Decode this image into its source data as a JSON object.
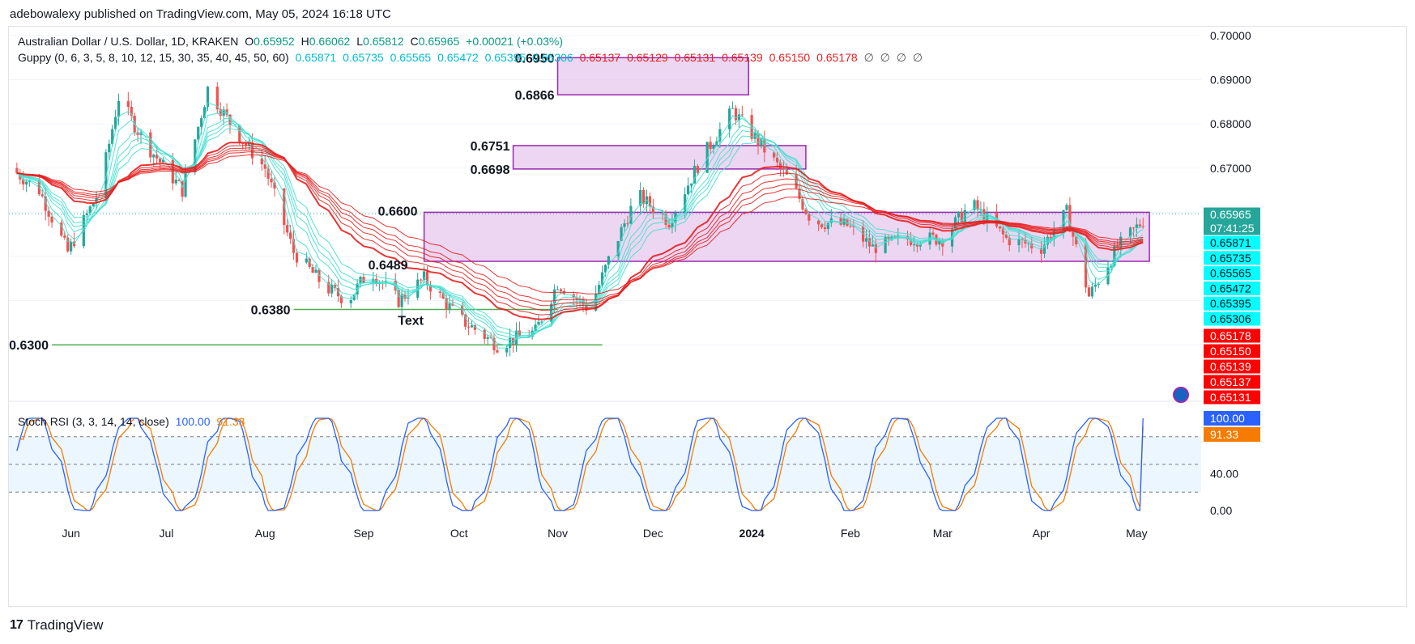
{
  "header": {
    "publisher_line": "adebowalexy published on TradingView.com, May 05, 2024 16:18 UTC"
  },
  "legend": {
    "symbol": "Australian Dollar / U.S. Dollar, 1D, KRAKEN",
    "ohlc": {
      "o_label": "O",
      "o": "0.65952",
      "h_label": "H",
      "h": "0.66062",
      "l_label": "L",
      "l": "0.65812",
      "c_label": "C",
      "c": "0.65965",
      "change": "+0.00021 (+0.03%)"
    },
    "guppy_label": "Guppy (0, 6, 3, 5, 8, 10, 12, 15, 30, 35, 40, 45, 50, 60)",
    "guppy_short": [
      "0.65871",
      "0.65735",
      "0.65565",
      "0.65472",
      "0.65395",
      "0.65306"
    ],
    "guppy_long": [
      "0.65137",
      "0.65129",
      "0.65131",
      "0.65139",
      "0.65150",
      "0.65178"
    ],
    "guppy_empty": [
      "∅",
      "∅",
      "∅",
      "∅"
    ],
    "stoch_label": "Stoch RSI (3, 3, 14, 14, close)",
    "stoch_k": "100.00",
    "stoch_d": "91.33"
  },
  "price_axis": {
    "ticks": [
      "0.70000",
      "0.69000",
      "0.68000",
      "0.67000"
    ],
    "badges_short": [
      "0.65871",
      "0.65735",
      "0.65565",
      "0.65472",
      "0.65395",
      "0.65306"
    ],
    "badges_long": [
      "0.65178",
      "0.65150",
      "0.65139",
      "0.65137",
      "0.65131"
    ],
    "last_price": "0.65965",
    "countdown": "07:41:25"
  },
  "rsi_axis": {
    "ticks": [
      "40.00",
      "0.00"
    ],
    "k_badge": "100.00",
    "d_badge": "91.33"
  },
  "time_axis": [
    "Jun",
    "Jul",
    "Aug",
    "Sep",
    "Oct",
    "Nov",
    "Dec",
    "2024",
    "Feb",
    "Mar",
    "Apr",
    "May"
  ],
  "annotations": [
    "0.6950",
    "0.6866",
    "0.6751",
    "0.6698",
    "0.6600",
    "0.6489",
    "0.6380",
    "Text",
    "0.6300"
  ],
  "footer": {
    "logo": "17",
    "brand": "TradingView"
  },
  "colors": {
    "up": "#26a69a",
    "down": "#ef5350",
    "short_ema": "#40e0d0",
    "long_ema": "#e81e1e",
    "zone_fill": "#e5c8ec",
    "zone_border": "#9c27b0",
    "support": "#4caf50",
    "stoch_k": "#2962ff",
    "stoch_d": "#f57c00"
  },
  "chart_data": {
    "type": "candlestick",
    "symbol": "AUD/USD",
    "timeframe": "1D",
    "y_range": [
      0.6245,
      0.7005
    ],
    "x_range": [
      "2024-05-13",
      "2024-05-20"
    ],
    "zones": [
      {
        "from": 0.6866,
        "to": 0.695,
        "x_start": "2023-11-01",
        "x_end": "2023-12-31"
      },
      {
        "from": 0.6698,
        "to": 0.6751,
        "x_start": "2023-10-18",
        "x_end": "2024-01-18"
      },
      {
        "from": 0.6489,
        "to": 0.66,
        "x_start": "2023-09-20",
        "x_end": "2024-05-05"
      }
    ],
    "support_lines": [
      {
        "value": 0.638,
        "x_start": "2023-08-10",
        "x_end": "2023-11-01"
      },
      {
        "value": 0.63,
        "x_start": "2023-05-26",
        "x_end": "2023-11-15"
      }
    ],
    "price_path": [
      [
        "2023-05-13",
        0.67
      ],
      [
        "2023-05-22",
        0.665
      ],
      [
        "2023-05-31",
        0.651
      ],
      [
        "2023-06-10",
        0.665
      ],
      [
        "2023-06-16",
        0.686
      ],
      [
        "2023-06-24",
        0.676
      ],
      [
        "2023-07-06",
        0.665
      ],
      [
        "2023-07-14",
        0.688
      ],
      [
        "2023-07-23",
        0.678
      ],
      [
        "2023-08-01",
        0.67
      ],
      [
        "2023-08-10",
        0.651
      ],
      [
        "2023-08-20",
        0.643
      ],
      [
        "2023-08-27",
        0.64
      ],
      [
        "2023-09-03",
        0.647
      ],
      [
        "2023-09-12",
        0.64
      ],
      [
        "2023-09-20",
        0.645
      ],
      [
        "2023-10-01",
        0.636
      ],
      [
        "2023-10-13",
        0.63
      ],
      [
        "2023-10-25",
        0.633
      ],
      [
        "2023-11-01",
        0.644
      ],
      [
        "2023-11-11",
        0.638
      ],
      [
        "2023-11-18",
        0.651
      ],
      [
        "2023-11-26",
        0.664
      ],
      [
        "2023-12-06",
        0.658
      ],
      [
        "2023-12-16",
        0.672
      ],
      [
        "2023-12-26",
        0.683
      ],
      [
        "2024-01-03",
        0.676
      ],
      [
        "2024-01-13",
        0.667
      ],
      [
        "2024-01-20",
        0.658
      ],
      [
        "2024-01-31",
        0.657
      ],
      [
        "2024-02-08",
        0.652
      ],
      [
        "2024-02-19",
        0.654
      ],
      [
        "2024-03-01",
        0.654
      ],
      [
        "2024-03-10",
        0.662
      ],
      [
        "2024-03-21",
        0.654
      ],
      [
        "2024-04-01",
        0.652
      ],
      [
        "2024-04-09",
        0.66
      ],
      [
        "2024-04-16",
        0.641
      ],
      [
        "2024-04-25",
        0.652
      ],
      [
        "2024-05-05",
        0.6597
      ]
    ],
    "stoch_rsi": {
      "y_range": [
        0,
        100
      ],
      "k_last": 100.0,
      "d_last": 91.33,
      "levels": [
        20,
        50,
        80
      ]
    }
  }
}
